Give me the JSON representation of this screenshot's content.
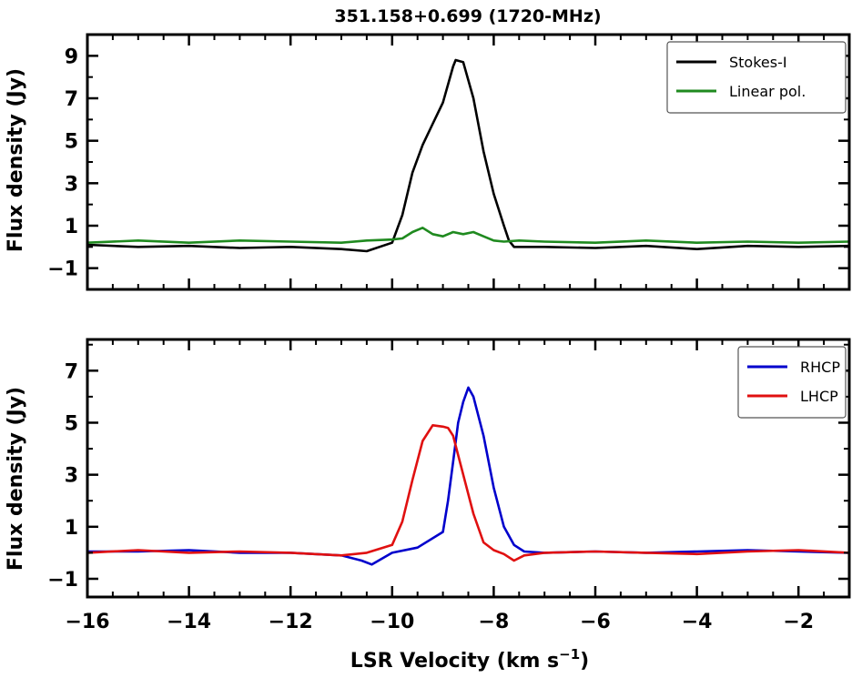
{
  "chart_data": [
    {
      "type": "line",
      "title": "351.158+0.699 (1720-MHz)",
      "xlabel": "",
      "ylabel": "Flux density (Jy)",
      "xlim": [
        -16,
        -1
      ],
      "ylim": [
        -2,
        10
      ],
      "yticks": [
        -1,
        1,
        3,
        5,
        7,
        9
      ],
      "ytick_labels": [
        "−1",
        "1",
        "3",
        "5",
        "7",
        "9"
      ],
      "legend": "top-right",
      "series": [
        {
          "name": "Stokes-I",
          "color": "#000000",
          "x": [
            -16,
            -15,
            -14,
            -13,
            -12,
            -11,
            -10.5,
            -10,
            -9.8,
            -9.6,
            -9.4,
            -9.2,
            -9.0,
            -8.8,
            -8.75,
            -8.6,
            -8.4,
            -8.2,
            -8.0,
            -7.8,
            -7.7,
            -7.6,
            -7,
            -6,
            -5,
            -4,
            -3,
            -2,
            -1
          ],
          "y": [
            0.1,
            0.0,
            0.05,
            -0.05,
            0.0,
            -0.1,
            -0.2,
            0.2,
            1.5,
            3.5,
            4.8,
            5.8,
            6.8,
            8.5,
            8.8,
            8.7,
            7.0,
            4.5,
            2.5,
            1.0,
            0.3,
            0.0,
            0.0,
            -0.05,
            0.05,
            -0.1,
            0.05,
            0.0,
            0.05
          ]
        },
        {
          "name": "Linear pol.",
          "color": "#1f8a1f",
          "x": [
            -16,
            -15,
            -14,
            -13,
            -12,
            -11,
            -10.5,
            -10,
            -9.8,
            -9.6,
            -9.4,
            -9.2,
            -9.0,
            -8.8,
            -8.6,
            -8.4,
            -8.2,
            -8.0,
            -7.8,
            -7.5,
            -7,
            -6,
            -5,
            -4,
            -3,
            -2,
            -1
          ],
          "y": [
            0.2,
            0.3,
            0.2,
            0.3,
            0.25,
            0.2,
            0.3,
            0.35,
            0.4,
            0.7,
            0.9,
            0.6,
            0.5,
            0.7,
            0.6,
            0.7,
            0.5,
            0.3,
            0.25,
            0.3,
            0.25,
            0.2,
            0.3,
            0.2,
            0.25,
            0.2,
            0.25
          ]
        }
      ]
    },
    {
      "type": "line",
      "title": "",
      "xlabel": "LSR Velocity (km s−1)",
      "xlabel_main": "LSR Velocity (km s",
      "xlabel_sup": "−1",
      "xlabel_end": ")",
      "ylabel": "Flux density (Jy)",
      "xlim": [
        -16,
        -1
      ],
      "ylim": [
        -1.7,
        8.2
      ],
      "yticks": [
        -1,
        1,
        3,
        5,
        7
      ],
      "ytick_labels": [
        "−1",
        "1",
        "3",
        "5",
        "7"
      ],
      "xticks": [
        -16,
        -14,
        -12,
        -10,
        -8,
        -6,
        -4,
        -2
      ],
      "xtick_labels": [
        "−16",
        "−14",
        "−12",
        "−10",
        "−8",
        "−6",
        "−4",
        "−2"
      ],
      "legend": "top-right",
      "series": [
        {
          "name": "RHCP",
          "color": "#0000cc",
          "x": [
            -16,
            -15,
            -14,
            -13,
            -12,
            -11,
            -10.6,
            -10.4,
            -10,
            -9.5,
            -9.0,
            -8.9,
            -8.8,
            -8.7,
            -8.6,
            -8.5,
            -8.4,
            -8.2,
            -8.0,
            -7.8,
            -7.6,
            -7.4,
            -7,
            -6,
            -5,
            -4,
            -3,
            -2,
            -1
          ],
          "y": [
            0.05,
            0.05,
            0.1,
            0.0,
            0.0,
            -0.1,
            -0.3,
            -0.45,
            0.0,
            0.2,
            0.8,
            2.0,
            3.5,
            5.0,
            5.8,
            6.35,
            6.0,
            4.5,
            2.5,
            1.0,
            0.3,
            0.05,
            0.0,
            0.05,
            0.0,
            0.05,
            0.1,
            0.05,
            0.0
          ]
        },
        {
          "name": "LHCP",
          "color": "#e01010",
          "x": [
            -16,
            -15,
            -14,
            -13,
            -12,
            -11,
            -10.5,
            -10.0,
            -9.8,
            -9.6,
            -9.4,
            -9.2,
            -9.0,
            -8.9,
            -8.8,
            -8.6,
            -8.4,
            -8.2,
            -8.0,
            -7.8,
            -7.6,
            -7.4,
            -7,
            -6,
            -5,
            -4,
            -3,
            -2,
            -1
          ],
          "y": [
            0.0,
            0.1,
            0.0,
            0.05,
            0.0,
            -0.1,
            0.0,
            0.3,
            1.2,
            2.8,
            4.3,
            4.9,
            4.85,
            4.8,
            4.5,
            3.0,
            1.5,
            0.4,
            0.1,
            -0.05,
            -0.3,
            -0.1,
            0.0,
            0.05,
            0.0,
            -0.05,
            0.05,
            0.1,
            0.0
          ]
        }
      ]
    }
  ]
}
